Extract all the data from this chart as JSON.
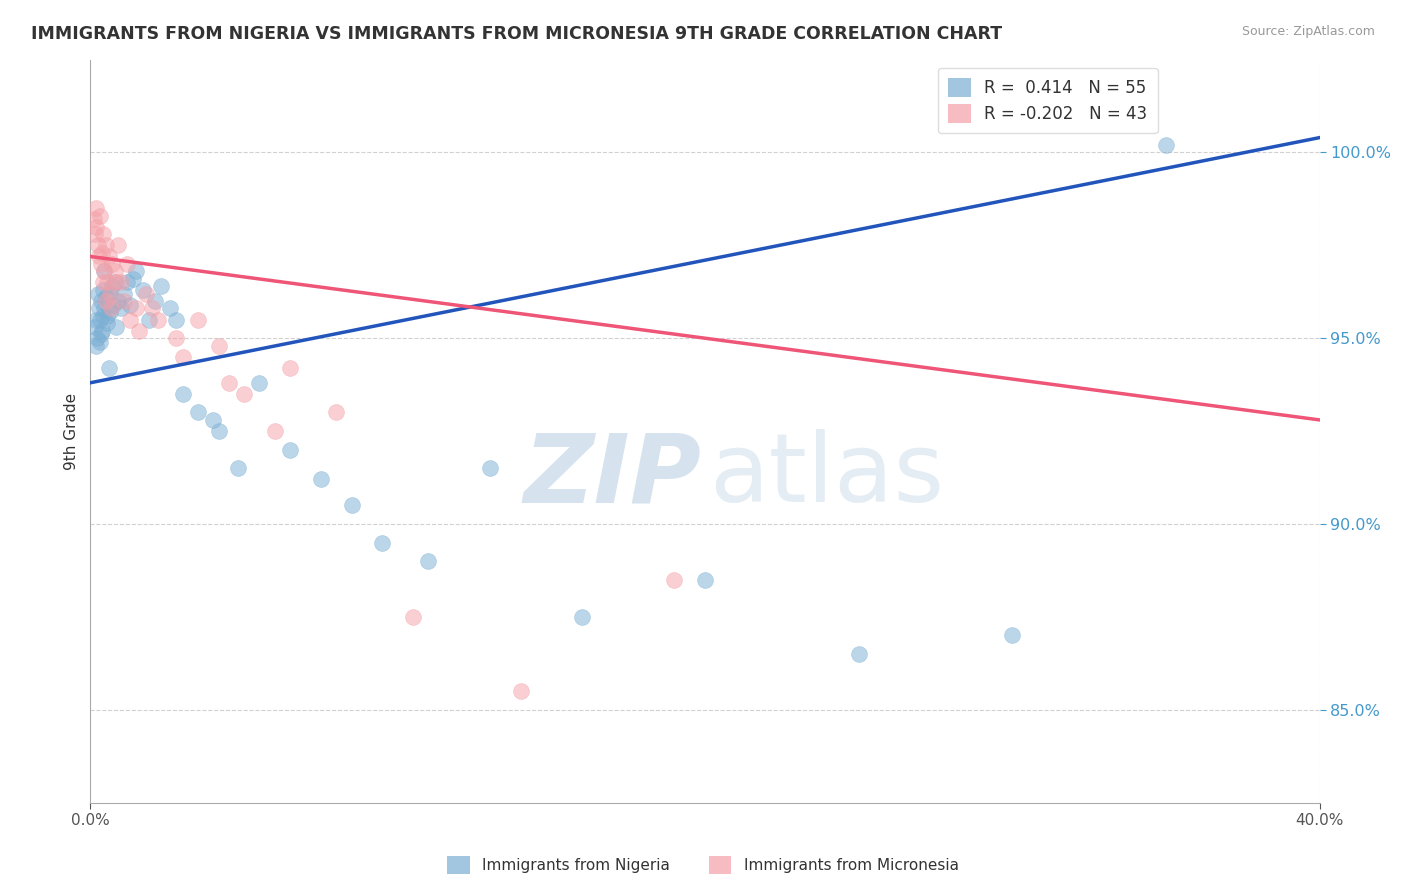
{
  "title": "IMMIGRANTS FROM NIGERIA VS IMMIGRANTS FROM MICRONESIA 9TH GRADE CORRELATION CHART",
  "source": "Source: ZipAtlas.com",
  "ylabel": "9th Grade",
  "y_ticks": [
    85.0,
    90.0,
    95.0,
    100.0
  ],
  "x_min": 0.0,
  "x_max": 40.0,
  "y_min": 82.5,
  "y_max": 102.5,
  "legend_nigeria_r": "R =  0.414",
  "legend_nigeria_n": "N = 55",
  "legend_micronesia_r": "R = -0.202",
  "legend_micronesia_n": "N = 43",
  "nigeria_color": "#7BAFD4",
  "micronesia_color": "#F4A0A8",
  "nigeria_line_color": "#2255BB",
  "micronesia_line_color": "#EE5577",
  "background_color": "#FFFFFF",
  "nig_line_x0": 0.0,
  "nig_line_y0": 93.8,
  "nig_line_x1": 40.0,
  "nig_line_y1": 100.4,
  "mic_line_x0": 0.0,
  "mic_line_y0": 97.2,
  "mic_line_x1": 40.0,
  "mic_line_y1": 92.8,
  "nig_x": [
    0.15,
    0.18,
    0.2,
    0.22,
    0.25,
    0.28,
    0.3,
    0.32,
    0.35,
    0.38,
    0.4,
    0.42,
    0.45,
    0.5,
    0.55,
    0.6,
    0.65,
    0.7,
    0.75,
    0.8,
    0.85,
    0.9,
    1.0,
    1.1,
    1.2,
    1.3,
    1.5,
    1.7,
    1.9,
    2.1,
    2.3,
    2.6,
    3.0,
    3.5,
    4.0,
    4.8,
    5.5,
    6.5,
    7.5,
    8.5,
    9.5,
    11.0,
    13.0,
    16.0,
    20.0,
    25.0,
    30.0,
    35.0,
    4.2,
    2.8,
    1.4,
    0.6,
    0.45,
    0.55,
    0.35
  ],
  "nig_y": [
    95.3,
    94.8,
    95.5,
    95.0,
    96.2,
    95.8,
    95.5,
    94.9,
    96.0,
    95.2,
    96.3,
    95.6,
    95.8,
    96.1,
    95.4,
    96.2,
    95.7,
    96.4,
    95.9,
    96.5,
    95.3,
    96.0,
    95.8,
    96.2,
    96.5,
    95.9,
    96.8,
    96.3,
    95.5,
    96.0,
    96.4,
    95.8,
    93.5,
    93.0,
    92.8,
    91.5,
    93.8,
    92.0,
    91.2,
    90.5,
    89.5,
    89.0,
    91.5,
    87.5,
    88.5,
    86.5,
    87.0,
    100.2,
    92.5,
    95.5,
    96.6,
    94.2,
    96.8,
    95.6,
    95.1
  ],
  "mic_x": [
    0.12,
    0.15,
    0.18,
    0.2,
    0.25,
    0.28,
    0.3,
    0.35,
    0.4,
    0.45,
    0.5,
    0.55,
    0.6,
    0.65,
    0.7,
    0.8,
    0.9,
    1.0,
    1.2,
    1.5,
    1.8,
    2.2,
    2.8,
    3.5,
    4.2,
    5.0,
    6.5,
    8.0,
    10.5,
    14.0,
    19.0,
    0.38,
    0.42,
    0.52,
    0.68,
    0.85,
    1.1,
    1.3,
    1.6,
    2.0,
    3.0,
    4.5,
    6.0
  ],
  "mic_y": [
    98.2,
    97.8,
    98.5,
    98.0,
    97.5,
    97.2,
    98.3,
    97.0,
    97.8,
    96.8,
    97.5,
    96.5,
    97.2,
    96.2,
    97.0,
    96.8,
    97.5,
    96.5,
    97.0,
    95.8,
    96.2,
    95.5,
    95.0,
    95.5,
    94.8,
    93.5,
    94.2,
    93.0,
    87.5,
    85.5,
    88.5,
    97.3,
    96.5,
    96.0,
    95.8,
    96.5,
    96.0,
    95.5,
    95.2,
    95.8,
    94.5,
    93.8,
    92.5
  ]
}
